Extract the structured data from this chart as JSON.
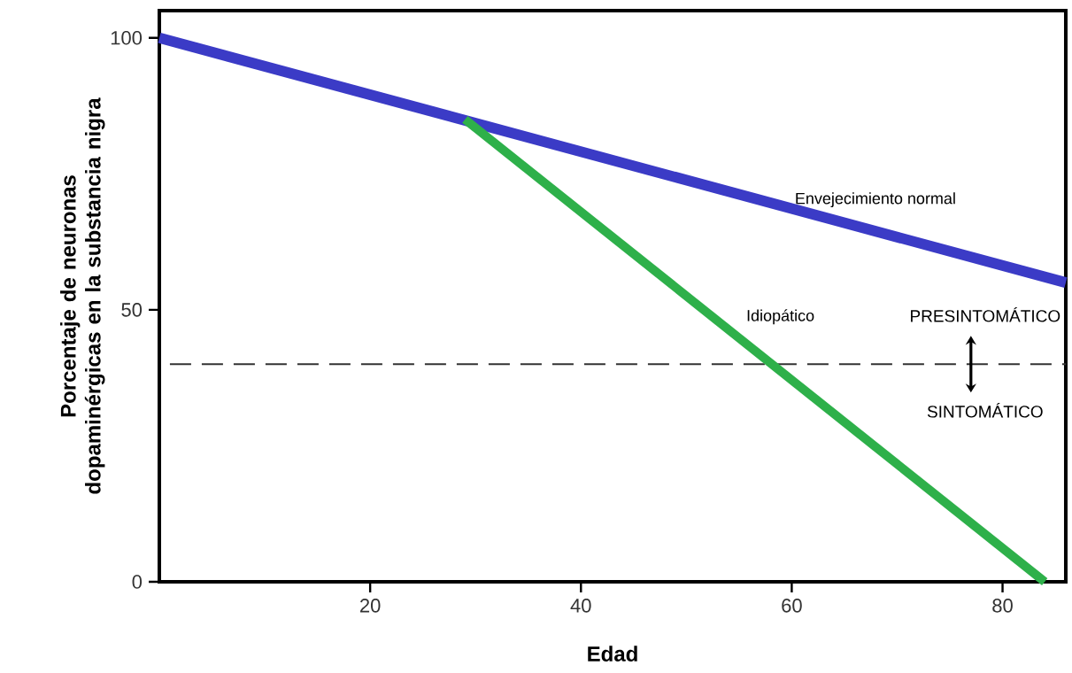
{
  "chart_data": {
    "type": "line",
    "xlabel": "Edad",
    "ylabel": "Porcentaje de neuronas dopaminérgicas en la substancia nigra",
    "series": [
      {
        "name": "Envejecimiento normal",
        "color": "#3b3bc6",
        "x": [
          0,
          86
        ],
        "values": [
          100,
          55
        ]
      },
      {
        "name": "Idiopático",
        "color": "#2eb04a",
        "x": [
          29,
          84
        ],
        "values": [
          85,
          0
        ]
      }
    ],
    "xlim": [
      0,
      86
    ],
    "ylim": [
      0,
      105
    ],
    "xticks": [
      20,
      40,
      60,
      80
    ],
    "yticks": [
      0,
      50,
      100
    ],
    "ref_lines": [
      {
        "axis": "y",
        "value": 40,
        "color": "#333333",
        "line_style": "dashed"
      }
    ],
    "annotations": [
      {
        "text": "PRESINTOMÁTICO",
        "x": 77,
        "y": 40
      },
      {
        "text": "SINTOMÁTICO",
        "x": 77,
        "y": 40
      }
    ],
    "marker": "none",
    "grid": false
  }
}
